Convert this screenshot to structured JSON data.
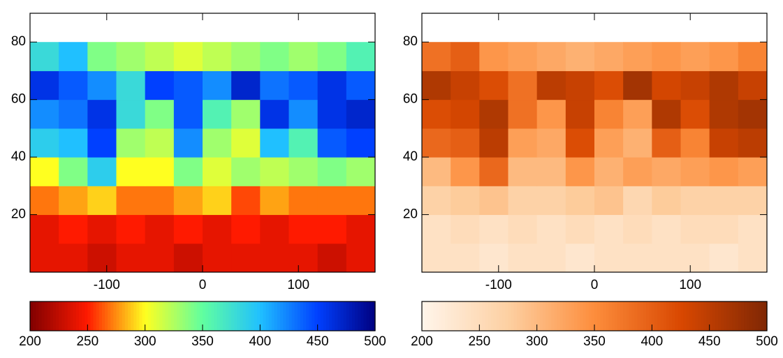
{
  "chart_data": [
    {
      "type": "heatmap",
      "xbins": [
        -180,
        -150,
        -120,
        -90,
        -60,
        -30,
        0,
        30,
        60,
        90,
        120,
        150,
        180
      ],
      "ybins": [
        0,
        10,
        20,
        30,
        40,
        50,
        60,
        70,
        80
      ],
      "z": [
        [
          240,
          240,
          230,
          240,
          240,
          230,
          240,
          240,
          240,
          240,
          230,
          240
        ],
        [
          240,
          250,
          240,
          250,
          240,
          250,
          240,
          250,
          240,
          250,
          250,
          240
        ],
        [
          270,
          280,
          290,
          270,
          270,
          280,
          290,
          260,
          280,
          270,
          270,
          270
        ],
        [
          300,
          340,
          390,
          300,
          300,
          340,
          310,
          330,
          320,
          330,
          340,
          330
        ],
        [
          390,
          400,
          450,
          330,
          320,
          420,
          330,
          310,
          400,
          360,
          440,
          450
        ],
        [
          420,
          430,
          460,
          380,
          340,
          440,
          360,
          330,
          460,
          420,
          460,
          470
        ],
        [
          460,
          440,
          420,
          380,
          450,
          440,
          420,
          470,
          430,
          440,
          460,
          440
        ],
        [
          380,
          400,
          340,
          330,
          320,
          310,
          320,
          330,
          340,
          330,
          340,
          360
        ]
      ],
      "xlim": [
        -180,
        180
      ],
      "ylim": [
        0,
        90
      ],
      "xticks": [
        -100,
        0,
        100
      ],
      "yticks": [
        20,
        40,
        60,
        80
      ],
      "zlim": [
        200,
        500
      ],
      "zticks": [
        200,
        250,
        300,
        350,
        400,
        450,
        500
      ],
      "colormap": [
        "#800000",
        "#ff1a00",
        "#ffff20",
        "#60ffa0",
        "#20c0ff",
        "#0040ff",
        "#000080"
      ]
    },
    {
      "type": "heatmap",
      "xbins": [
        -180,
        -150,
        -120,
        -90,
        -60,
        -30,
        0,
        30,
        60,
        90,
        120,
        150,
        180
      ],
      "ybins": [
        0,
        10,
        20,
        30,
        40,
        50,
        60,
        70,
        80
      ],
      "z": [
        [
          240,
          240,
          230,
          240,
          240,
          230,
          240,
          240,
          240,
          240,
          230,
          240
        ],
        [
          240,
          250,
          240,
          250,
          240,
          250,
          240,
          250,
          240,
          250,
          250,
          240
        ],
        [
          270,
          280,
          290,
          270,
          270,
          280,
          290,
          260,
          280,
          270,
          270,
          270
        ],
        [
          300,
          340,
          390,
          300,
          300,
          340,
          310,
          330,
          320,
          330,
          340,
          330
        ],
        [
          390,
          400,
          450,
          330,
          320,
          420,
          330,
          310,
          400,
          360,
          440,
          450
        ],
        [
          420,
          430,
          460,
          380,
          340,
          440,
          360,
          330,
          460,
          420,
          460,
          470
        ],
        [
          460,
          440,
          420,
          380,
          450,
          440,
          420,
          470,
          430,
          440,
          460,
          440
        ],
        [
          380,
          400,
          340,
          330,
          320,
          310,
          320,
          330,
          340,
          330,
          340,
          360
        ]
      ],
      "xlim": [
        -180,
        180
      ],
      "ylim": [
        0,
        90
      ],
      "xticks": [
        -100,
        0,
        100
      ],
      "yticks": [
        20,
        40,
        60,
        80
      ],
      "zlim": [
        200,
        500
      ],
      "zticks": [
        200,
        250,
        300,
        350,
        400,
        450,
        500
      ],
      "colormap": [
        "#fff5eb",
        "#fdd0a2",
        "#fd8d3c",
        "#d94801",
        "#7f2704"
      ]
    }
  ]
}
